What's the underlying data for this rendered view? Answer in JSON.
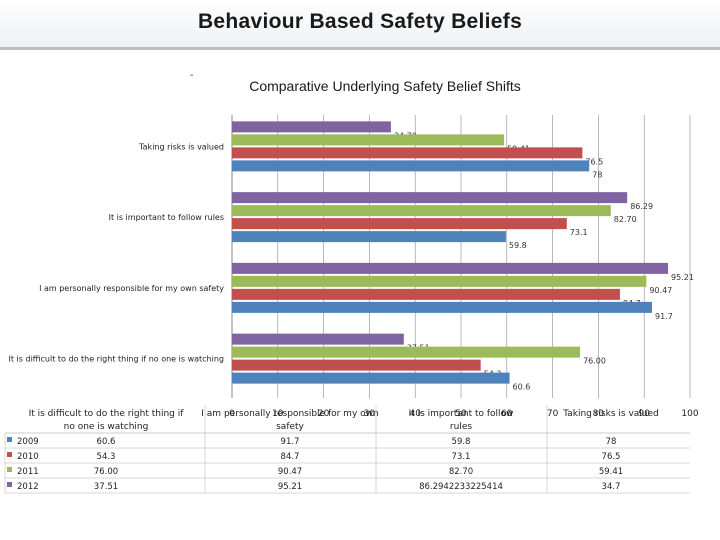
{
  "page_title": "Behaviour Based Safety Beliefs",
  "marker": "-",
  "chart_data": {
    "type": "bar",
    "orientation": "horizontal",
    "title": "Comparative Underlying Safety Belief Shifts",
    "categories": [
      "Taking risks is valued",
      "It is important to follow rules",
      "I am personally responsible for my own safety",
      "It is difficult to do the right thing if no one is watching"
    ],
    "series": [
      {
        "name": "2012",
        "color": "#8064a2",
        "values": [
          34.7,
          86.29,
          95.21,
          37.51
        ],
        "labels": [
          "34.70",
          "86.29",
          "95.21",
          "37.51"
        ]
      },
      {
        "name": "2011",
        "color": "#9bbb59",
        "values": [
          59.41,
          82.7,
          90.47,
          76.0
        ],
        "labels": [
          "59.41",
          "82.70",
          "90.47",
          "76.00"
        ]
      },
      {
        "name": "2010",
        "color": "#c0504d",
        "values": [
          76.5,
          73.1,
          84.7,
          54.3
        ],
        "labels": [
          "76.5",
          "73.1",
          "84.7",
          "54.3"
        ]
      },
      {
        "name": "2009",
        "color": "#4f81bd",
        "values": [
          78,
          59.8,
          91.7,
          60.6
        ],
        "labels": [
          "78",
          "59.8",
          "91.7",
          "60.6"
        ]
      }
    ],
    "xlim": [
      0,
      100
    ],
    "x_ticks": [
      "0",
      "10",
      "20",
      "30",
      "40",
      "50",
      "60",
      "70",
      "80",
      "90",
      "100"
    ],
    "grid": true,
    "table": {
      "headers": [
        "It is difficult to do the right thing if no one is watching",
        "I am personally responsible for my own safety",
        "It is important to follow rules",
        "Taking risks is valued"
      ],
      "rows": [
        {
          "label": "2009",
          "color": "#4f81bd",
          "cells": [
            "60.6",
            "91.7",
            "59.8",
            "78"
          ]
        },
        {
          "label": "2010",
          "color": "#c0504d",
          "cells": [
            "54.3",
            "84.7",
            "73.1",
            "76.5"
          ]
        },
        {
          "label": "2011",
          "color": "#9bbb59",
          "cells": [
            "76.00",
            "90.47",
            "82.70",
            "59.41"
          ]
        },
        {
          "label": "2012",
          "color": "#8064a2",
          "cells": [
            "37.51",
            "95.21",
            "86.29422332254 14",
            "34.7"
          ]
        }
      ]
    }
  }
}
